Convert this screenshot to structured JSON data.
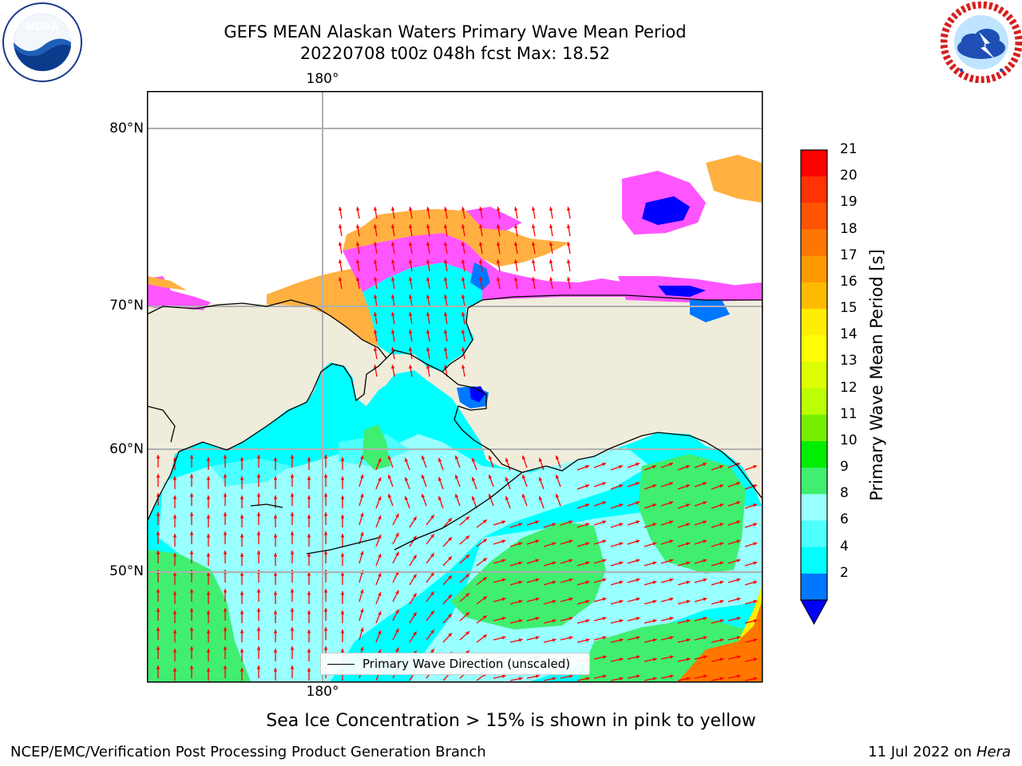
{
  "title": {
    "line1": "GEFS MEAN Alaskan Waters Primary Wave Mean Period",
    "line2": "20220708 t00z 048h fcst   Max: 18.52"
  },
  "logos": {
    "left": {
      "name": "noaa-logo",
      "text": "NOAA"
    },
    "right": {
      "name": "nws-logo",
      "text": "NATIONAL WEATHER SERVICE"
    }
  },
  "map": {
    "top_lon_label": "180°",
    "bottom_lon_label": "180°",
    "lat_labels": [
      "80°N",
      "70°N",
      "60°N",
      "50°N"
    ],
    "legend_label": "Primary Wave Direction (unscaled)",
    "colors": {
      "land": "#efecdc",
      "ocean_cyan": "#00ffff",
      "ocean_light_cyan": "#99ffff",
      "ocean_mid_cyan": "#4dffff",
      "green": "#40ee70",
      "orange": "#ff7700",
      "ice_pink": "#ff55ff",
      "ice_orange": "#ffb040",
      "ice_blue": "#0000ff",
      "arrow": "#ff0000"
    }
  },
  "colorbar": {
    "title": "Primary Wave Mean Period [s]",
    "ticks": [
      "21",
      "20",
      "19",
      "18",
      "17",
      "16",
      "15",
      "14",
      "13",
      "12",
      "11",
      "10",
      "9",
      "8",
      "6",
      "4",
      "2"
    ],
    "colors": [
      "#ff0000",
      "#ff3300",
      "#ff5500",
      "#ff7700",
      "#ff9900",
      "#ffbb00",
      "#ffee00",
      "#ffff00",
      "#ddff00",
      "#bbff00",
      "#77ee00",
      "#00ee00",
      "#40ee70",
      "#99ffff",
      "#4dffff",
      "#00ffff",
      "#0077ff"
    ],
    "extend_color": "#0000ff"
  },
  "notes": {
    "ice": "Sea Ice Concentration > 15% is shown in pink to yellow"
  },
  "footer": {
    "left": "NCEP/EMC/Verification Post Processing Product Generation Branch",
    "right_date": "11 Jul 2022 on ",
    "right_host": "Hera"
  }
}
